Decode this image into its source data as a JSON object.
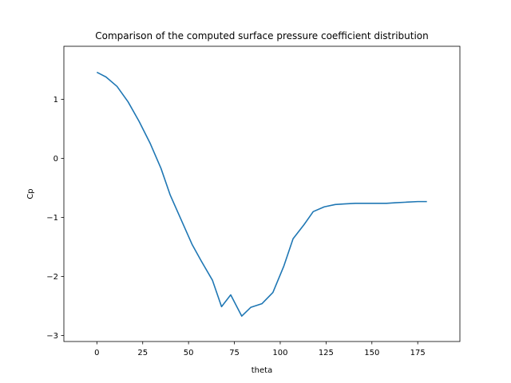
{
  "chart_data": {
    "type": "line",
    "title": "Comparison of the computed surface pressure coefficient distribution",
    "xlabel": "theta",
    "ylabel": "Cp",
    "xlim": [
      -18,
      198
    ],
    "ylim": [
      -3.1,
      1.9
    ],
    "xticks": [
      0,
      25,
      50,
      75,
      100,
      125,
      150,
      175
    ],
    "yticks": [
      -3,
      -2,
      -1,
      0,
      1
    ],
    "xtick_labels": [
      "0",
      "25",
      "50",
      "75",
      "100",
      "125",
      "150",
      "175"
    ],
    "ytick_labels": [
      "−3",
      "−2",
      "−1",
      "0",
      "1"
    ],
    "grid": false,
    "legend": null,
    "series": [
      {
        "color": "#1f77b4",
        "x": [
          0,
          5,
          11,
          17,
          23,
          29,
          35,
          40,
          46,
          52,
          57,
          63,
          68,
          73,
          79,
          84,
          90,
          96,
          102,
          107,
          113,
          118,
          124,
          130,
          135,
          141,
          147,
          152,
          158,
          163,
          169,
          175,
          180
        ],
        "y": [
          1.46,
          1.38,
          1.22,
          0.96,
          0.63,
          0.26,
          -0.17,
          -0.62,
          -1.04,
          -1.46,
          -1.74,
          -2.06,
          -2.51,
          -2.31,
          -2.67,
          -2.52,
          -2.46,
          -2.27,
          -1.82,
          -1.36,
          -1.12,
          -0.9,
          -0.82,
          -0.78,
          -0.77,
          -0.76,
          -0.76,
          -0.76,
          -0.76,
          -0.75,
          -0.74,
          -0.73,
          -0.73
        ]
      }
    ]
  }
}
